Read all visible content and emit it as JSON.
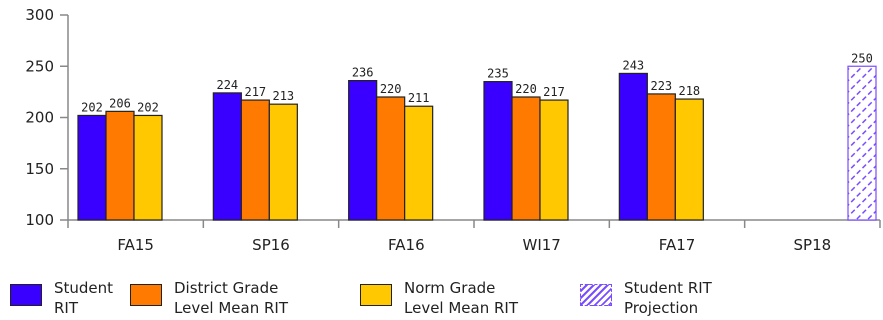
{
  "chart_data": {
    "type": "bar",
    "categories": [
      "FA15",
      "SP16",
      "FA16",
      "WI17",
      "FA17",
      "SP18"
    ],
    "series": [
      {
        "name": "Student RIT",
        "values": [
          202,
          224,
          236,
          235,
          243,
          null
        ],
        "color": "#3a00ff"
      },
      {
        "name": "District Grade Level Mean RIT",
        "values": [
          206,
          217,
          220,
          220,
          223,
          null
        ],
        "color": "#ff7a00"
      },
      {
        "name": "Norm Grade Level Mean RIT",
        "values": [
          202,
          213,
          211,
          217,
          218,
          null
        ],
        "color": "#ffc800"
      },
      {
        "name": "Student RIT Projection",
        "values": [
          null,
          null,
          null,
          null,
          null,
          250
        ],
        "color": "#7a4dff",
        "pattern": "hatched"
      }
    ],
    "yticks": [
      100,
      150,
      200,
      250,
      300
    ],
    "ylim": [
      100,
      300
    ],
    "legend": {
      "position": "bottom",
      "items": [
        {
          "line1": "Student",
          "line2": "RIT",
          "color": "#3a00ff"
        },
        {
          "line1": "District Grade",
          "line2": "Level Mean RIT",
          "color": "#ff7a00"
        },
        {
          "line1": "Norm Grade",
          "line2": "Level Mean RIT",
          "color": "#ffc800"
        },
        {
          "line1": "Student RIT",
          "line2": "Projection",
          "color": "#7a4dff",
          "pattern": "hatched"
        }
      ]
    }
  }
}
